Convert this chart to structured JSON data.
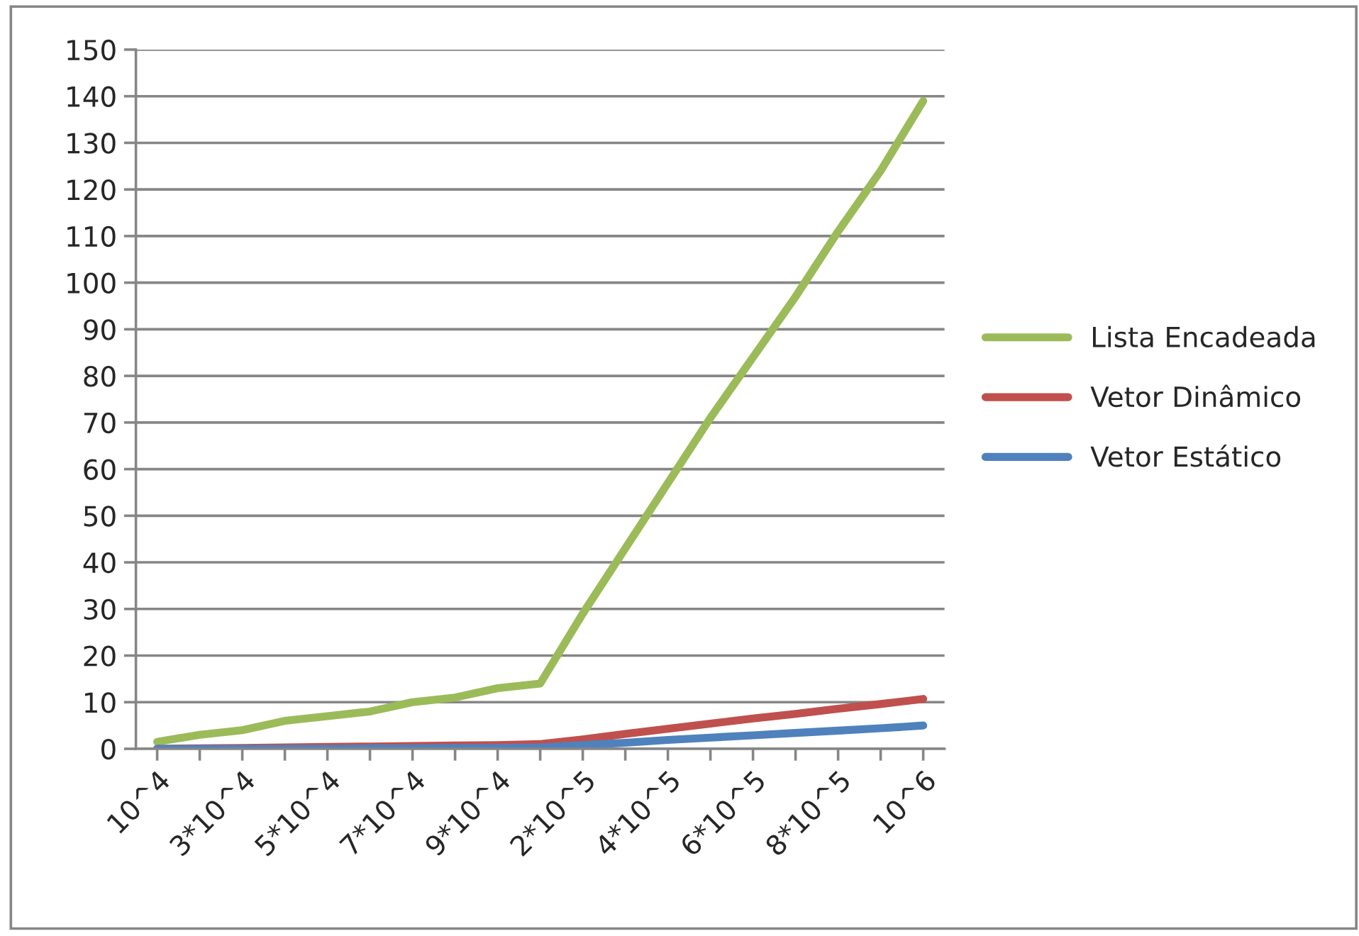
{
  "chart_data": {
    "type": "line",
    "categories": [
      "10^4",
      null,
      "3*10^4",
      null,
      "5*10^4",
      null,
      "7*10^4",
      null,
      "9*10^4",
      null,
      "2*10^5",
      null,
      "4*10^5",
      null,
      "6*10^5",
      null,
      "8*10^5",
      null,
      "10^6"
    ],
    "series": [
      {
        "name": "Lista Encadeada",
        "color": "#9bbb59",
        "values": [
          1.5,
          3,
          4,
          6,
          7,
          8,
          10,
          11,
          13,
          14,
          29,
          43,
          57,
          71,
          84,
          97,
          111,
          124,
          139
        ]
      },
      {
        "name": "Vetor Dinâmico",
        "color": "#c0504d",
        "values": [
          0,
          0.1,
          0.2,
          0.3,
          0.4,
          0.5,
          0.6,
          0.7,
          0.8,
          1,
          2,
          3.2,
          4.3,
          5.4,
          6.5,
          7.5,
          8.6,
          9.6,
          10.7
        ]
      },
      {
        "name": "Vetor Estático",
        "color": "#4f81bd",
        "values": [
          0,
          0,
          0,
          0,
          0,
          0.1,
          0.1,
          0.2,
          0.2,
          0.3,
          0.8,
          1.3,
          1.9,
          2.4,
          2.9,
          3.4,
          3.9,
          4.4,
          5
        ]
      }
    ],
    "ylim": [
      0,
      150
    ],
    "yticks": [
      0,
      10,
      20,
      30,
      40,
      50,
      60,
      70,
      80,
      90,
      100,
      110,
      120,
      130,
      140,
      150
    ],
    "grid": "y",
    "legend": "right",
    "marker": "none",
    "line_style": "solid"
  }
}
